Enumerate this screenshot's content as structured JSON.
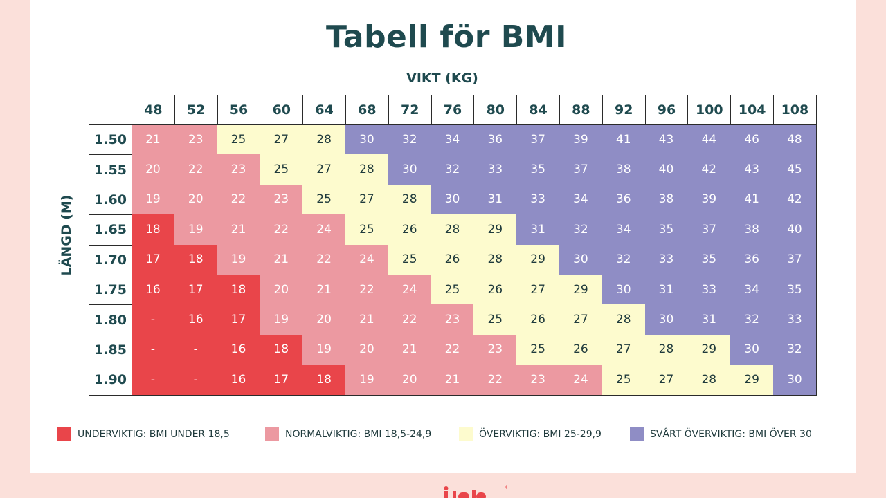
{
  "title": "Tabell för BMI",
  "colors": {
    "under": "#e9454a",
    "normal": "#ec99a1",
    "over": "#fdfbce",
    "severe": "#8f8dc5",
    "text": "#1f4a4f"
  },
  "legend": [
    {
      "key": "under",
      "label": "UNDERVIKTIG: BMI UNDER 18,5"
    },
    {
      "key": "normal",
      "label": "NORMALVIKTIG: BMI 18,5-24,9"
    },
    {
      "key": "over",
      "label": "ÖVERVIKTIG: BMI 25-29,9"
    },
    {
      "key": "severe",
      "label": "SVÅRT ÖVERVIKTIG: BMI ÖVER 30"
    }
  ],
  "logo_icon": "lind-logo-icon",
  "chart_data": {
    "type": "heatmap",
    "title": "Tabell för BMI",
    "xlabel": "VIKT (KG)",
    "ylabel": "LÄNGD (M)",
    "x": [
      "48",
      "52",
      "56",
      "60",
      "64",
      "68",
      "72",
      "76",
      "80",
      "84",
      "88",
      "92",
      "96",
      "100",
      "104",
      "108"
    ],
    "y": [
      "1.50",
      "1.55",
      "1.60",
      "1.65",
      "1.70",
      "1.75",
      "1.80",
      "1.85",
      "1.90"
    ],
    "values": [
      [
        "21",
        "23",
        "25",
        "27",
        "28",
        "30",
        "32",
        "34",
        "36",
        "37",
        "39",
        "41",
        "43",
        "44",
        "46",
        "48"
      ],
      [
        "20",
        "22",
        "23",
        "25",
        "27",
        "28",
        "30",
        "32",
        "33",
        "35",
        "37",
        "38",
        "40",
        "42",
        "43",
        "45"
      ],
      [
        "19",
        "20",
        "22",
        "23",
        "25",
        "27",
        "28",
        "30",
        "31",
        "33",
        "34",
        "36",
        "38",
        "39",
        "41",
        "42"
      ],
      [
        "18",
        "19",
        "21",
        "22",
        "24",
        "25",
        "26",
        "28",
        "29",
        "31",
        "32",
        "34",
        "35",
        "37",
        "38",
        "40"
      ],
      [
        "17",
        "18",
        "19",
        "21",
        "22",
        "24",
        "25",
        "26",
        "28",
        "29",
        "30",
        "32",
        "33",
        "35",
        "36",
        "37"
      ],
      [
        "16",
        "17",
        "18",
        "20",
        "21",
        "22",
        "24",
        "25",
        "26",
        "27",
        "29",
        "30",
        "31",
        "33",
        "34",
        "35"
      ],
      [
        "-",
        "16",
        "17",
        "19",
        "20",
        "21",
        "22",
        "23",
        "25",
        "26",
        "27",
        "28",
        "30",
        "31",
        "32",
        "33"
      ],
      [
        "-",
        "-",
        "16",
        "18",
        "19",
        "20",
        "21",
        "22",
        "23",
        "25",
        "26",
        "27",
        "28",
        "29",
        "30",
        "32"
      ],
      [
        "-",
        "-",
        "16",
        "17",
        "18",
        "19",
        "20",
        "21",
        "22",
        "23",
        "24",
        "25",
        "27",
        "28",
        "29",
        "30"
      ]
    ],
    "categories_grid": [
      [
        "normal",
        "normal",
        "over",
        "over",
        "over",
        "severe",
        "severe",
        "severe",
        "severe",
        "severe",
        "severe",
        "severe",
        "severe",
        "severe",
        "severe",
        "severe"
      ],
      [
        "normal",
        "normal",
        "normal",
        "over",
        "over",
        "over",
        "severe",
        "severe",
        "severe",
        "severe",
        "severe",
        "severe",
        "severe",
        "severe",
        "severe",
        "severe"
      ],
      [
        "normal",
        "normal",
        "normal",
        "normal",
        "over",
        "over",
        "over",
        "severe",
        "severe",
        "severe",
        "severe",
        "severe",
        "severe",
        "severe",
        "severe",
        "severe"
      ],
      [
        "under",
        "normal",
        "normal",
        "normal",
        "normal",
        "over",
        "over",
        "over",
        "over",
        "severe",
        "severe",
        "severe",
        "severe",
        "severe",
        "severe",
        "severe"
      ],
      [
        "under",
        "under",
        "normal",
        "normal",
        "normal",
        "normal",
        "over",
        "over",
        "over",
        "over",
        "severe",
        "severe",
        "severe",
        "severe",
        "severe",
        "severe"
      ],
      [
        "under",
        "under",
        "under",
        "normal",
        "normal",
        "normal",
        "normal",
        "over",
        "over",
        "over",
        "over",
        "severe",
        "severe",
        "severe",
        "severe",
        "severe"
      ],
      [
        "under",
        "under",
        "under",
        "normal",
        "normal",
        "normal",
        "normal",
        "normal",
        "over",
        "over",
        "over",
        "over",
        "severe",
        "severe",
        "severe",
        "severe"
      ],
      [
        "under",
        "under",
        "under",
        "under",
        "normal",
        "normal",
        "normal",
        "normal",
        "normal",
        "over",
        "over",
        "over",
        "over",
        "over",
        "severe",
        "severe"
      ],
      [
        "under",
        "under",
        "under",
        "under",
        "under",
        "normal",
        "normal",
        "normal",
        "normal",
        "normal",
        "normal",
        "over",
        "over",
        "over",
        "over",
        "severe"
      ]
    ],
    "legend_placement": "bottom"
  }
}
